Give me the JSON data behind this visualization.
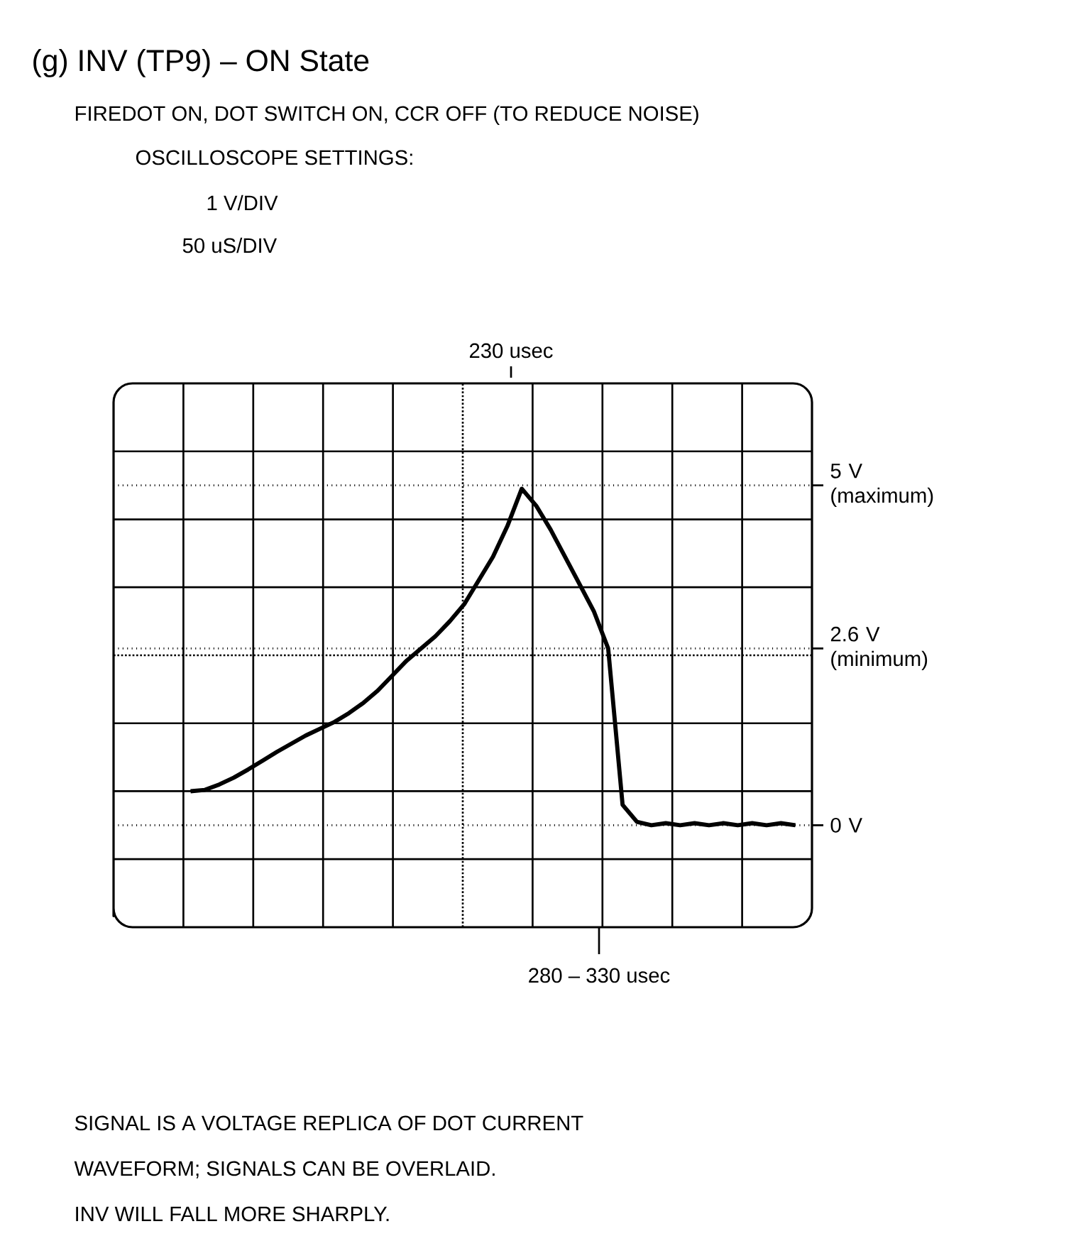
{
  "chart_data": {
    "type": "line",
    "title": "(g) INV (TP9) – ON State",
    "subtitle": "FIREDOT ON, DOT SWITCH ON, CCR OFF (TO REDUCE NOISE)",
    "annotations": [
      "OSCILLOSCOPE SETTINGS:",
      "1 V/DIV",
      "50 uS/DIV",
      "230 usec",
      "280 – 330 usec",
      "SIGNAL IS A VOLTAGE REPLICA OF DOT CURRENT",
      "WAVEFORM; SIGNALS CAN BE OVERLAID.",
      "INV WILL FALL MORE SHARPLY."
    ],
    "categories": [
      null,
      null,
      null,
      null,
      null,
      null,
      null,
      null,
      null,
      null,
      null,
      null,
      null,
      null,
      null,
      null,
      null,
      null,
      null,
      null,
      null,
      null,
      null,
      null,
      null,
      null,
      null,
      null,
      null,
      null,
      null,
      null,
      null,
      null,
      null,
      null,
      null,
      null,
      null,
      null,
      null,
      null,
      null
    ],
    "series": [
      {
        "color": "#000000",
        "values": [
          0.5,
          0.52,
          0.6,
          0.7,
          0.82,
          0.95,
          1.08,
          1.2,
          1.32,
          1.42,
          1.52,
          1.65,
          1.8,
          1.98,
          2.2,
          2.42,
          2.6,
          2.78,
          3.0,
          3.25,
          3.6,
          3.95,
          4.4,
          4.95,
          4.7,
          4.35,
          3.95,
          3.55,
          3.15,
          2.6,
          0.3,
          0.05,
          0.0,
          0.03,
          0.0,
          0.03,
          0.0,
          0.03,
          0.0,
          0.03,
          0.0,
          0.03,
          0.0
        ]
      }
    ],
    "ylim": [
      -1.5,
      6.5
    ],
    "yticks": [
      {
        "value": 5,
        "label": "5 V (maximum)"
      },
      {
        "value": 2.6,
        "label": "2.6 V (minimum)"
      },
      {
        "value": 0,
        "label": "0 V"
      }
    ],
    "tick_labels": "y",
    "grid": "y",
    "marker": "none",
    "line_style": "solid"
  }
}
